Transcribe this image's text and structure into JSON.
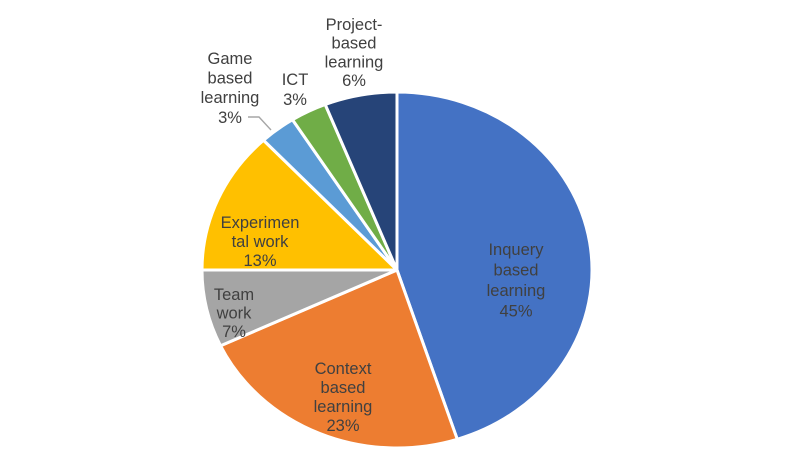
{
  "chart_data": {
    "type": "pie",
    "title": "",
    "legend_position": "none",
    "grid": false,
    "start_angle_deg": 0,
    "direction": "clockwise",
    "background_color": "#FFFFFF",
    "label_color": "#404040",
    "slice_border_color": "#FFFFFF",
    "leader_line_color": "#A6A6A6",
    "total": 100,
    "categories": [
      "Inquery based learning",
      "Context based learning",
      "Team work",
      "Experimental work",
      "Game based learning",
      "ICT",
      "Project-based learning"
    ],
    "values": [
      45,
      23,
      7,
      13,
      3,
      3,
      6
    ],
    "segments": [
      {
        "name": "Inquery based learning",
        "value": 45,
        "unit": "%",
        "color": "#4472C4",
        "label_lines": [
          "Inquery",
          "based",
          "learning",
          "45%"
        ],
        "label_placement": "inside",
        "leader_line": false
      },
      {
        "name": "Context based learning",
        "value": 23,
        "unit": "%",
        "color": "#ED7D31",
        "label_lines": [
          "Context",
          "based",
          "learning",
          "23%"
        ],
        "label_placement": "inside",
        "leader_line": false
      },
      {
        "name": "Team work",
        "value": 7,
        "unit": "%",
        "color": "#A5A5A5",
        "label_lines": [
          "Team",
          "work",
          "7%"
        ],
        "label_placement": "inside",
        "leader_line": false
      },
      {
        "name": "Experimental work",
        "value": 13,
        "unit": "%",
        "color": "#FFC000",
        "label_lines": [
          "Experimen",
          "tal work",
          "13%"
        ],
        "label_placement": "inside",
        "leader_line": false
      },
      {
        "name": "Game based learning",
        "value": 3,
        "unit": "%",
        "color": "#5B9BD5",
        "label_lines": [
          "Game",
          "based",
          "learning",
          "3%"
        ],
        "label_placement": "outside",
        "leader_line": true
      },
      {
        "name": "ICT",
        "value": 3,
        "unit": "%",
        "color": "#70AD47",
        "label_lines": [
          "ICT",
          "3%"
        ],
        "label_placement": "outside",
        "leader_line": false
      },
      {
        "name": "Project-based learning",
        "value": 6,
        "unit": "%",
        "color": "#264478",
        "label_lines": [
          "Project-",
          "based",
          "learning",
          "6%"
        ],
        "label_placement": "outside",
        "leader_line": false
      }
    ]
  }
}
